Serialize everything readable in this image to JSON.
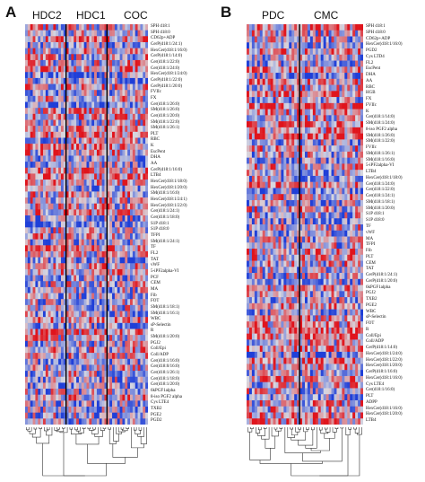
{
  "panels": [
    {
      "letter": "A",
      "groups": [
        "HDC2",
        "HDC1",
        "COC"
      ],
      "rows": [
        "SPH d18:1",
        "SPH d18:0",
        "CD62p+ADP",
        "CerP(d18:1/24:1)",
        "HexCer(d18:1/16:0)",
        "CerP(d18:1/14:0)",
        "Cer(d18:1/22:0)",
        "Cer(d18:1/24:0)",
        "HexCer(d18:1/24:0)",
        "CerP(d18:1/22:0)",
        "CerP(d18:1/20:0)",
        "FVIIc",
        "FX",
        "Cer(d18:1/26:0)",
        "SM(d18:1/26:0)",
        "Cer(d18:1/20:0)",
        "SM(d18:1/22:0)",
        "SM(d18:1/26:1)",
        "PLT",
        "RBC",
        "K",
        "EscPent",
        "DHA",
        "AA",
        "CerP(d18:1/16:0)",
        "LTB4",
        "HexCer(d18:1/18:0)",
        "HexCer(d18:1/20:0)",
        "SM(d18:1/16:0)",
        "HexCer(d18:1/24:1)",
        "HexCer(d18:1/22:0)",
        "Cer(d18:1/24:1)",
        "Cer(d18:1/18:0)",
        "S1P d18:1",
        "S1P d18:0",
        "TFPI",
        "SM(d18:1/24:1)",
        "TF",
        "FL2",
        "TAT",
        "vWF",
        "5-iPF2alpha-VI",
        "PCF",
        "CEM",
        "MA",
        "Fib",
        "FOT",
        "SM(d18:1/18:1)",
        "SM(d18:1/16:1)",
        "WBC",
        "sP-Selectin",
        "R",
        "SM(d18:1/20:0)",
        "PGJ2",
        "Coll/Epi",
        "Coll/ADP",
        "Cer(d18:1/16:0)",
        "Cer(d18:0/16:0)",
        "Cer(d18:1/26:1)",
        "Cer(d18:1/18:0)",
        "Cer(d18:1/20:0)",
        "6kPGF1alpha",
        "8-iso PGF2 alpha",
        "Cys LTE4",
        "TXB2",
        "PGE2",
        "PGD2"
      ]
    },
    {
      "letter": "B",
      "groups": [
        "PDC",
        "CMC"
      ],
      "rows": [
        "SPH d18:1",
        "SPH d18:0",
        "CD62p+ADP",
        "HexCer(d18:1/16:0)",
        "PGD2",
        "Cys LTD4",
        "FL2",
        "EscPent",
        "DHA",
        "AA",
        "RBC",
        "HGB",
        "FX",
        "FVIIc",
        "K",
        "Cer(d18:1/14:0)",
        "SM(d18:1/24:0)",
        "8-iso PGF2 alpha",
        "SM(d18:1/26:0)",
        "SM(d18:1/22:0)",
        "FVIIc",
        "SM(d18:1/26:1)",
        "SM(d18:1/16:0)",
        "5-iPF2alpha-VI",
        "LTB4",
        "HexCer(d18:1/18:0)",
        "Cer(d18:1/24:0)",
        "Cer(d18:1/22:0)",
        "Cer(d18:1/24:1)",
        "SM(d18:1/18:1)",
        "SM(d18:1/20:0)",
        "S1P d18:1",
        "S1P d18:0",
        "TF",
        "vWF",
        "MA",
        "TFPI",
        "Fib",
        "PLT",
        "CEM",
        "TAT",
        "CerP(d18:1/24:1)",
        "CerP(d18:1/20:0)",
        "6kPGF1alpha",
        "PGJ2",
        "TXB2",
        "PGE2",
        "WBC",
        "sP-Selectin",
        "FOT",
        "R",
        "Coll/Epi",
        "Coll/ADP",
        "CerP(d18:1/14:0)",
        "HexCer(d18:1/24:0)",
        "HexCer(d18:1/22:0)",
        "HexCer(d18:1/20:0)",
        "CerP(d18:1/16:0)",
        "HexCer(d18:1/16:0)",
        "Cys LTE4",
        "Cer(d18:1/16:0)",
        "PLT",
        "ADPP",
        "HexCer(d18:1/16:0)",
        "HexCer(d18:1/20:0)",
        "LTB4"
      ]
    }
  ],
  "colors": {
    "high": "#e0141c",
    "low": "#1f3fd8",
    "mid": "#d8d8e0",
    "divider": "#000000"
  }
}
